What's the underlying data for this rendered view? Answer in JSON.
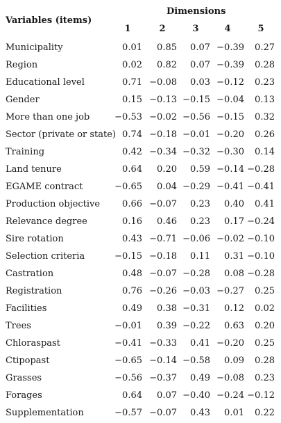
{
  "header": {
    "dimensions": "Dimensions",
    "variables": "Variables (items)",
    "columns": [
      "1",
      "2",
      "3",
      "4",
      "5"
    ]
  },
  "rows": [
    {
      "label": "Municipality",
      "values": [
        "0.01",
        "0.85",
        "0.07",
        "−0.39",
        "0.27"
      ]
    },
    {
      "label": "Region",
      "values": [
        "0.02",
        "0.82",
        "0.07",
        "−0.39",
        "0.28"
      ]
    },
    {
      "label": "Educational level",
      "values": [
        "0.71",
        "−0.08",
        "0.03",
        "−0.12",
        "0.23"
      ]
    },
    {
      "label": "Gender",
      "values": [
        "0.15",
        "−0.13",
        "−0.15",
        "−0.04",
        "0.13"
      ]
    },
    {
      "label": "More than one job",
      "values": [
        "−0.53",
        "−0.02",
        "−0.56",
        "−0.15",
        "0.32"
      ]
    },
    {
      "label": "Sector (private or state)",
      "values": [
        "0.74",
        "−0.18",
        "−0.01",
        "−0.20",
        "0.26"
      ]
    },
    {
      "label": "Training",
      "values": [
        "0.42",
        "−0.34",
        "−0.32",
        "−0.30",
        "0.14"
      ]
    },
    {
      "label": "Land tenure",
      "values": [
        "0.64",
        "0.20",
        "0.59",
        "−0.14",
        "−0.28"
      ]
    },
    {
      "label": "EGAME contract",
      "values": [
        "−0.65",
        "0.04",
        "−0.29",
        "−0.41",
        "−0.41"
      ]
    },
    {
      "label": "Production objective",
      "values": [
        "0.66",
        "−0.07",
        "0.23",
        "0.40",
        "0.41"
      ]
    },
    {
      "label": "Relevance degree",
      "values": [
        "0.16",
        "0.46",
        "0.23",
        "0.17",
        "−0.24"
      ]
    },
    {
      "label": "Sire rotation",
      "values": [
        "0.43",
        "−0.71",
        "−0.06",
        "−0.02",
        "−0.10"
      ]
    },
    {
      "label": "Selection criteria",
      "values": [
        "−0.15",
        "−0.18",
        "0.11",
        "0.31",
        "−0.10"
      ]
    },
    {
      "label": "Castration",
      "values": [
        "0.48",
        "−0.07",
        "−0.28",
        "0.08",
        "−0.28"
      ]
    },
    {
      "label": "Registration",
      "values": [
        "0.76",
        "−0.26",
        "−0.03",
        "−0.27",
        "0.25"
      ]
    },
    {
      "label": "Facilities",
      "values": [
        "0.49",
        "0.38",
        "−0.31",
        "0.12",
        "0.02"
      ]
    },
    {
      "label": "Trees",
      "values": [
        "−0.01",
        "0.39",
        "−0.22",
        "0.63",
        "0.20"
      ]
    },
    {
      "label": "Chloraspast",
      "values": [
        "−0.41",
        "−0.33",
        "0.41",
        "−0.20",
        "0.25"
      ]
    },
    {
      "label": "Ctipopast",
      "values": [
        "−0.65",
        "−0.14",
        "−0.58",
        "0.09",
        "0.28"
      ]
    },
    {
      "label": "Grasses",
      "values": [
        "−0.56",
        "−0.37",
        "0.49",
        "−0.08",
        "0.23"
      ]
    },
    {
      "label": "Forages",
      "values": [
        "0.64",
        "0.07",
        "−0.40",
        "−0.24",
        "−0.12"
      ]
    },
    {
      "label": "Supplementation",
      "values": [
        "−0.57",
        "−0.07",
        "0.43",
        "0.01",
        "0.22"
      ]
    }
  ]
}
